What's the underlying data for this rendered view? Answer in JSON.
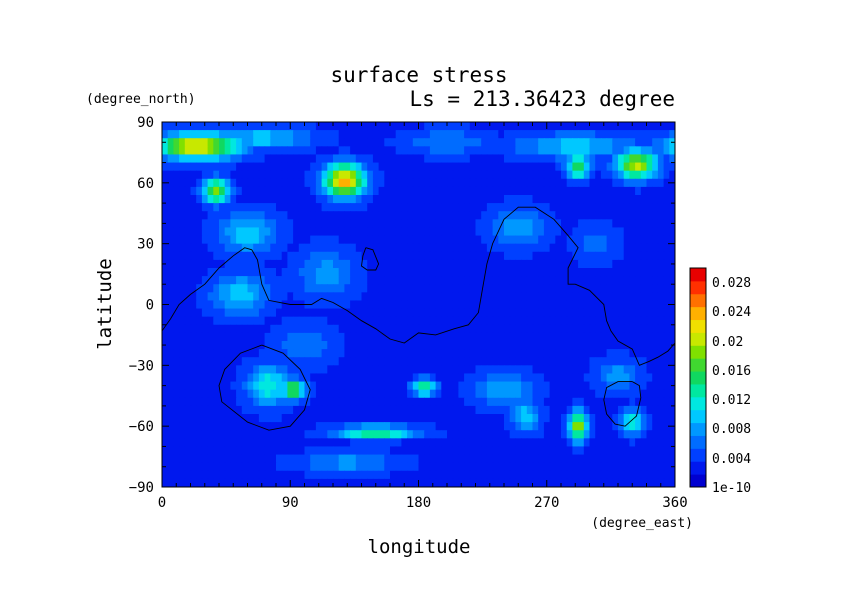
{
  "chart_data": {
    "type": "heatmap",
    "title": "surface stress",
    "subtitle": "Ls = 213.36423 degree",
    "xlabel": "longitude",
    "ylabel": "latitude",
    "x_unit": "(degree_east)",
    "y_unit": "(degree_north)",
    "xlim": [
      0,
      360
    ],
    "ylim": [
      -90,
      90
    ],
    "x_ticks": [
      "0",
      "90",
      "180",
      "270",
      "360"
    ],
    "y_ticks": [
      "90",
      "60",
      "30",
      "0",
      "−30",
      "−60",
      "−90"
    ],
    "x_tick_values": [
      0,
      90,
      180,
      270,
      360
    ],
    "y_tick_values": [
      90,
      60,
      30,
      0,
      -30,
      -60,
      -90
    ],
    "colorbar_ticks": [
      "0.028",
      "0.024",
      "0.02",
      "0.016",
      "0.012",
      "0.008",
      "0.004",
      "1e-10"
    ],
    "colorbar_range": [
      0,
      0.03
    ],
    "colorbar_colors": [
      "#0000d0",
      "#0018ee",
      "#0040ff",
      "#006cff",
      "#0098ff",
      "#00c8ff",
      "#00e8e0",
      "#00e8a0",
      "#10d860",
      "#40d830",
      "#80e000",
      "#c8e800",
      "#f0e000",
      "#ffb000",
      "#ff7000",
      "#ff3000",
      "#e80000"
    ],
    "background_value": 0.003,
    "hotspots": [
      {
        "lon": 25,
        "lat": 78,
        "value": 0.023,
        "rlon": 28,
        "rlat": 6
      },
      {
        "lon": 70,
        "lat": 82,
        "value": 0.01,
        "rlon": 35,
        "rlat": 5
      },
      {
        "lon": 38,
        "lat": 56,
        "value": 0.018,
        "rlon": 9,
        "rlat": 6
      },
      {
        "lon": 128,
        "lat": 61,
        "value": 0.024,
        "rlon": 14,
        "rlat": 8
      },
      {
        "lon": 200,
        "lat": 80,
        "value": 0.007,
        "rlon": 30,
        "rlat": 6
      },
      {
        "lon": 290,
        "lat": 78,
        "value": 0.01,
        "rlon": 40,
        "rlat": 6
      },
      {
        "lon": 292,
        "lat": 68,
        "value": 0.016,
        "rlon": 8,
        "rlat": 6
      },
      {
        "lon": 333,
        "lat": 69,
        "value": 0.02,
        "rlon": 14,
        "rlat": 7
      },
      {
        "lon": 60,
        "lat": 35,
        "value": 0.01,
        "rlon": 20,
        "rlat": 10
      },
      {
        "lon": 55,
        "lat": 5,
        "value": 0.01,
        "rlon": 20,
        "rlat": 10
      },
      {
        "lon": 115,
        "lat": 15,
        "value": 0.008,
        "rlon": 20,
        "rlat": 12
      },
      {
        "lon": 100,
        "lat": -20,
        "value": 0.007,
        "rlon": 20,
        "rlat": 10
      },
      {
        "lon": 250,
        "lat": 38,
        "value": 0.008,
        "rlon": 20,
        "rlat": 10
      },
      {
        "lon": 305,
        "lat": 30,
        "value": 0.006,
        "rlon": 15,
        "rlat": 10
      },
      {
        "lon": 75,
        "lat": -40,
        "value": 0.012,
        "rlon": 15,
        "rlat": 10
      },
      {
        "lon": 92,
        "lat": -42,
        "value": 0.017,
        "rlon": 8,
        "rlat": 5
      },
      {
        "lon": 184,
        "lat": -41,
        "value": 0.015,
        "rlon": 8,
        "rlat": 4
      },
      {
        "lon": 240,
        "lat": -42,
        "value": 0.009,
        "rlon": 20,
        "rlat": 8
      },
      {
        "lon": 255,
        "lat": -55,
        "value": 0.01,
        "rlon": 10,
        "rlat": 8
      },
      {
        "lon": 292,
        "lat": -60,
        "value": 0.02,
        "rlon": 6,
        "rlat": 7
      },
      {
        "lon": 330,
        "lat": -58,
        "value": 0.012,
        "rlon": 8,
        "rlat": 6
      },
      {
        "lon": 150,
        "lat": -63,
        "value": 0.015,
        "rlon": 28,
        "rlat": 3
      },
      {
        "lon": 130,
        "lat": -78,
        "value": 0.008,
        "rlon": 35,
        "rlat": 5
      },
      {
        "lon": 320,
        "lat": -35,
        "value": 0.008,
        "rlon": 15,
        "rlat": 8
      }
    ],
    "contours": [
      [
        [
          0,
          -13
        ],
        [
          6,
          -7
        ],
        [
          12,
          0
        ],
        [
          20,
          5
        ],
        [
          30,
          10
        ],
        [
          40,
          18
        ],
        [
          50,
          24
        ],
        [
          58,
          28
        ],
        [
          63,
          27
        ],
        [
          67,
          22
        ],
        [
          70,
          10
        ],
        [
          75,
          2
        ],
        [
          90,
          0
        ],
        [
          105,
          0
        ],
        [
          112,
          3
        ],
        [
          120,
          1
        ],
        [
          130,
          -3
        ],
        [
          140,
          -8
        ],
        [
          150,
          -12
        ],
        [
          160,
          -17
        ],
        [
          170,
          -19
        ],
        [
          180,
          -14
        ],
        [
          192,
          -15
        ],
        [
          205,
          -12
        ],
        [
          215,
          -10
        ],
        [
          222,
          -4
        ],
        [
          225,
          8
        ],
        [
          228,
          20
        ],
        [
          232,
          30
        ],
        [
          240,
          42
        ],
        [
          250,
          48
        ],
        [
          262,
          48
        ],
        [
          275,
          42
        ],
        [
          285,
          34
        ],
        [
          292,
          28
        ],
        [
          285,
          18
        ],
        [
          285,
          10
        ],
        [
          290,
          10
        ],
        [
          300,
          7
        ],
        [
          310,
          0
        ],
        [
          312,
          -8
        ],
        [
          315,
          -13
        ],
        [
          320,
          -18
        ],
        [
          330,
          -22
        ],
        [
          335,
          -30
        ],
        [
          342,
          -28
        ],
        [
          348,
          -26
        ],
        [
          355,
          -23
        ],
        [
          360,
          -19
        ]
      ],
      [
        [
          143,
          28
        ],
        [
          148,
          27
        ],
        [
          152,
          20
        ],
        [
          150,
          17
        ],
        [
          144,
          17
        ],
        [
          140,
          19
        ],
        [
          141,
          24
        ],
        [
          143,
          28
        ]
      ],
      [
        [
          70,
          -20
        ],
        [
          85,
          -24
        ],
        [
          97,
          -32
        ],
        [
          104,
          -42
        ],
        [
          100,
          -52
        ],
        [
          90,
          -60
        ],
        [
          75,
          -62
        ],
        [
          60,
          -58
        ],
        [
          42,
          -48
        ],
        [
          40,
          -40
        ],
        [
          44,
          -32
        ],
        [
          55,
          -24
        ],
        [
          70,
          -20
        ]
      ],
      [
        [
          330,
          -38
        ],
        [
          335,
          -40
        ],
        [
          336,
          -46
        ],
        [
          333,
          -55
        ],
        [
          325,
          -60
        ],
        [
          318,
          -59
        ],
        [
          312,
          -54
        ],
        [
          310,
          -47
        ],
        [
          312,
          -41
        ],
        [
          320,
          -38
        ],
        [
          330,
          -38
        ]
      ]
    ]
  }
}
